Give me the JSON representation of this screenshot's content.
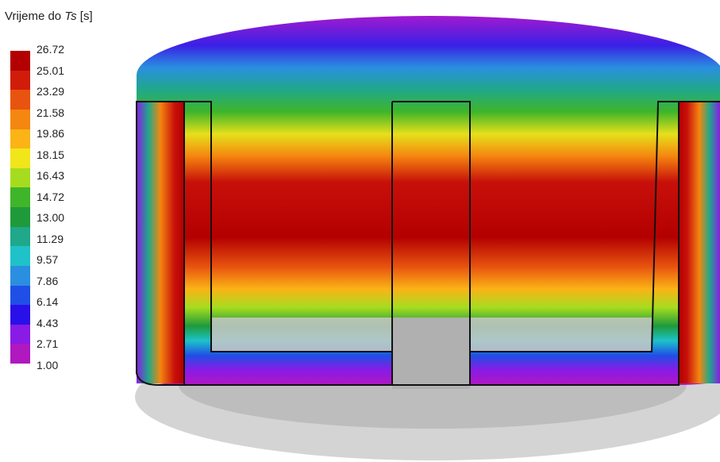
{
  "legend": {
    "title": {
      "prefix": "Vrijeme do ",
      "symbol": "Ts",
      "unit": " [s]"
    },
    "labels": [
      "26.72",
      "25.01",
      "23.29",
      "21.58",
      "19.86",
      "18.15",
      "16.43",
      "14.72",
      "13.00",
      "11.29",
      "9.57",
      "7.86",
      "6.14",
      "4.43",
      "2.71",
      "1.00"
    ],
    "colors": [
      "#b30000",
      "#d11c0a",
      "#e8540f",
      "#f5860f",
      "#fbb316",
      "#f0e61a",
      "#a6dc1f",
      "#3fb52a",
      "#1f9a3a",
      "#1fa88a",
      "#1ec2c8",
      "#2a8fe0",
      "#1f4fe6",
      "#2a10e8",
      "#8a1ae6",
      "#b018c0"
    ]
  }
}
